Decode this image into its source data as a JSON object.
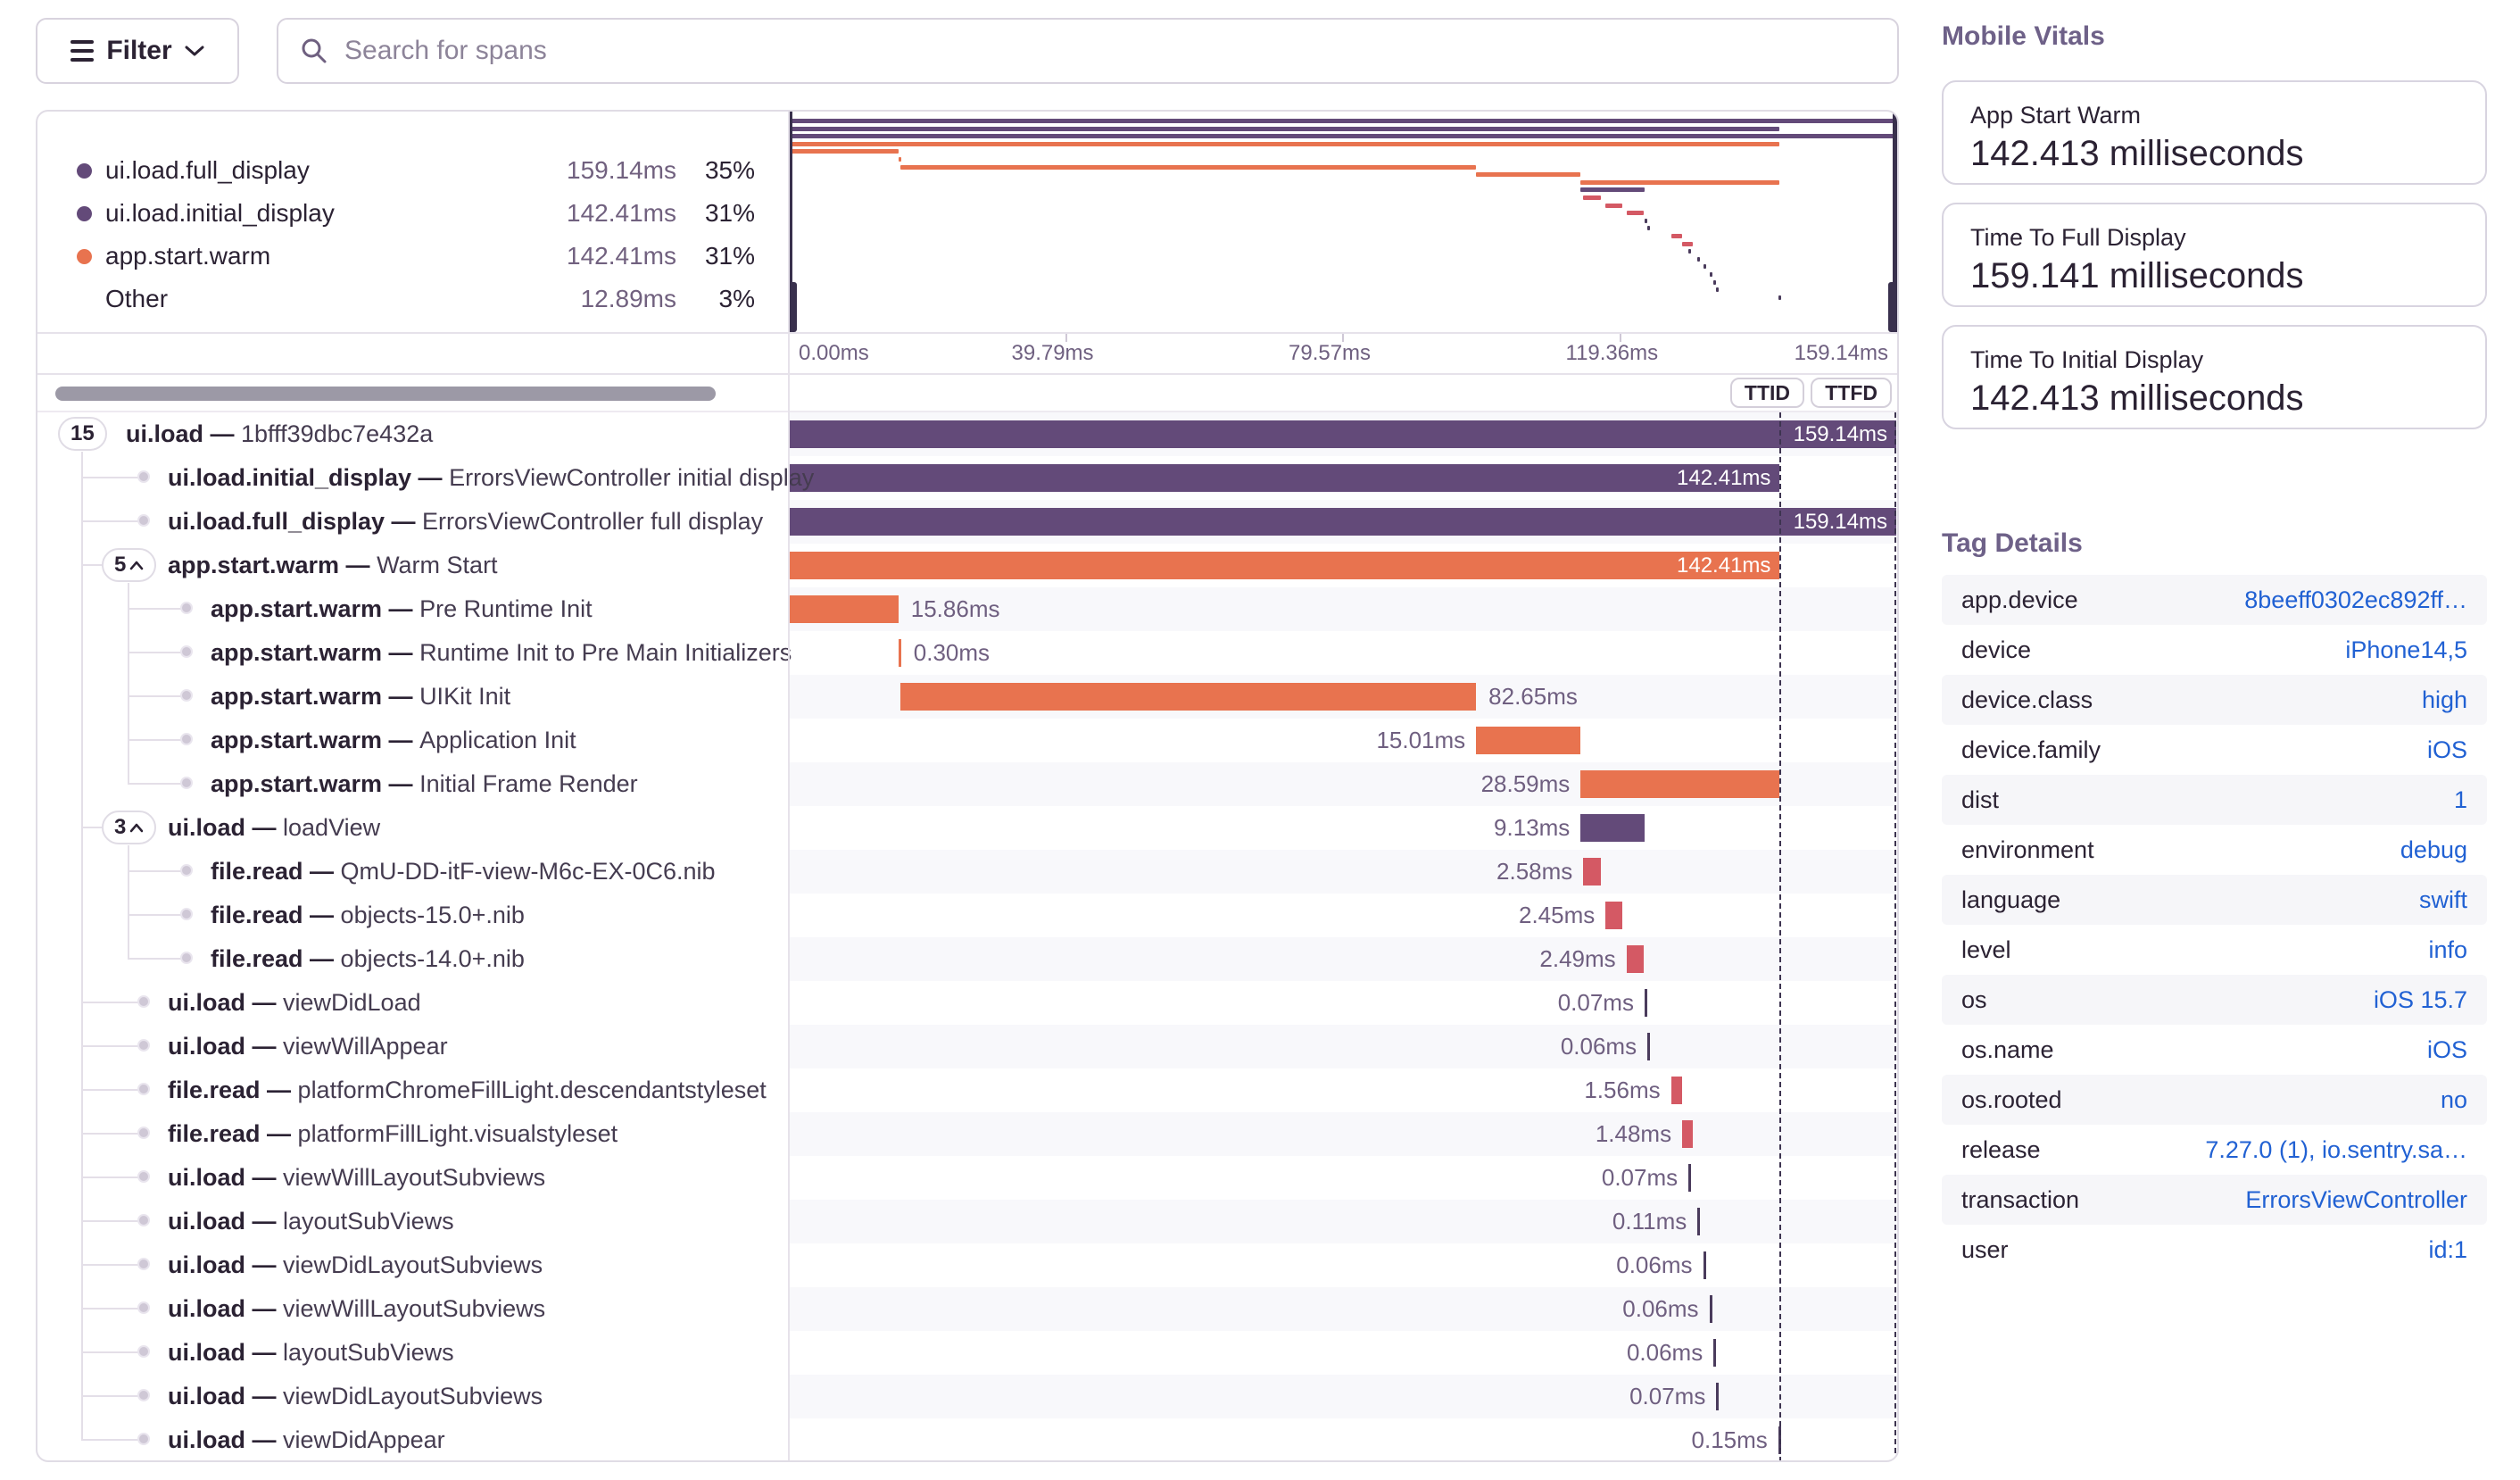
{
  "toolbar": {
    "filter_label": "Filter",
    "search_placeholder": "Search for spans"
  },
  "colors": {
    "purple": "#634a79",
    "orange": "#e8734f",
    "red": "#d45964",
    "tick": "#4a3b5c",
    "link_blue": "#2161d3"
  },
  "legend": {
    "items": [
      {
        "name": "ui.load.full_display",
        "duration": "159.14ms",
        "percent": "35%",
        "color": "#634a79"
      },
      {
        "name": "ui.load.initial_display",
        "duration": "142.41ms",
        "percent": "31%",
        "color": "#634a79"
      },
      {
        "name": "app.start.warm",
        "duration": "142.41ms",
        "percent": "31%",
        "color": "#e8734f"
      },
      {
        "name": "Other",
        "duration": "12.89ms",
        "percent": "3%",
        "color": null
      }
    ]
  },
  "minimap": {
    "total_ms": 159.14,
    "axis_ticks": [
      "0.00ms",
      "39.79ms",
      "79.57ms",
      "119.36ms",
      "159.14ms"
    ],
    "rows": [
      {
        "s": 0,
        "e": 159.14,
        "c": "purple"
      },
      {
        "s": 0,
        "e": 142.41,
        "c": "purple"
      },
      {
        "s": 0,
        "e": 159.14,
        "c": "purple"
      },
      {
        "s": 0,
        "e": 142.41,
        "c": "orange"
      },
      {
        "s": 0,
        "e": 15.86,
        "c": "orange"
      },
      {
        "s": 15.86,
        "e": 16.16,
        "c": "orange"
      },
      {
        "s": 16.16,
        "e": 98.81,
        "c": "orange"
      },
      {
        "s": 98.81,
        "e": 113.82,
        "c": "orange"
      },
      {
        "s": 113.82,
        "e": 142.41,
        "c": "orange"
      },
      {
        "s": 113.82,
        "e": 122.95,
        "c": "purple"
      },
      {
        "s": 114.2,
        "e": 116.78,
        "c": "red"
      },
      {
        "s": 117.4,
        "e": 119.85,
        "c": "red"
      },
      {
        "s": 120.4,
        "e": 122.89,
        "c": "red"
      },
      {
        "s": 123.0,
        "e": 123.25,
        "c": "tick"
      },
      {
        "s": 123.4,
        "e": 123.65,
        "c": "tick"
      },
      {
        "s": 126.8,
        "e": 128.36,
        "c": "red"
      },
      {
        "s": 128.4,
        "e": 129.88,
        "c": "red"
      },
      {
        "s": 129.3,
        "e": 129.55,
        "c": "tick"
      },
      {
        "s": 130.6,
        "e": 130.85,
        "c": "tick"
      },
      {
        "s": 131.4,
        "e": 131.65,
        "c": "tick"
      },
      {
        "s": 132.3,
        "e": 132.55,
        "c": "tick"
      },
      {
        "s": 132.9,
        "e": 133.15,
        "c": "tick"
      },
      {
        "s": 133.3,
        "e": 133.55,
        "c": "tick"
      },
      {
        "s": 142.2,
        "e": 142.45,
        "c": "tick"
      }
    ]
  },
  "markers": {
    "ttid_label": "TTID",
    "ttfd_label": "TTFD",
    "ttid_ms": 142.41,
    "ttfd_ms": 159.14
  },
  "span_separator": "—",
  "spans": [
    {
      "op": "ui.load",
      "desc": "1bfff39dbc7e432a",
      "depth": 0,
      "badge": "15",
      "chevron": false,
      "start": 0,
      "dur": 159.14,
      "label": "159.14ms",
      "pos": "in",
      "color": "purple"
    },
    {
      "op": "ui.load.initial_display",
      "desc": "ErrorsViewController initial display",
      "depth": 1,
      "badge": null,
      "chevron": false,
      "start": 0,
      "dur": 142.41,
      "label": "142.41ms",
      "pos": "in",
      "color": "purple"
    },
    {
      "op": "ui.load.full_display",
      "desc": "ErrorsViewController full display",
      "depth": 1,
      "badge": null,
      "chevron": false,
      "start": 0,
      "dur": 159.14,
      "label": "159.14ms",
      "pos": "in",
      "color": "purple"
    },
    {
      "op": "app.start.warm",
      "desc": "Warm Start",
      "depth": 1,
      "badge": "5",
      "chevron": true,
      "start": 0,
      "dur": 142.41,
      "label": "142.41ms",
      "pos": "in",
      "color": "orange"
    },
    {
      "op": "app.start.warm",
      "desc": "Pre Runtime Init",
      "depth": 2,
      "badge": null,
      "chevron": false,
      "start": 0,
      "dur": 15.86,
      "label": "15.86ms",
      "pos": "after",
      "color": "orange"
    },
    {
      "op": "app.start.warm",
      "desc": "Runtime Init to Pre Main Initializers",
      "depth": 2,
      "badge": null,
      "chevron": false,
      "start": 15.86,
      "dur": 0.3,
      "label": "0.30ms",
      "pos": "after",
      "color": "orange"
    },
    {
      "op": "app.start.warm",
      "desc": "UIKit Init",
      "depth": 2,
      "badge": null,
      "chevron": false,
      "start": 16.16,
      "dur": 82.65,
      "label": "82.65ms",
      "pos": "after",
      "color": "orange"
    },
    {
      "op": "app.start.warm",
      "desc": "Application Init",
      "depth": 2,
      "badge": null,
      "chevron": false,
      "start": 98.81,
      "dur": 15.01,
      "label": "15.01ms",
      "pos": "before",
      "color": "orange"
    },
    {
      "op": "app.start.warm",
      "desc": "Initial Frame Render",
      "depth": 2,
      "badge": null,
      "chevron": false,
      "start": 113.82,
      "dur": 28.59,
      "label": "28.59ms",
      "pos": "before",
      "color": "orange"
    },
    {
      "op": "ui.load",
      "desc": "loadView",
      "depth": 1,
      "badge": "3",
      "chevron": true,
      "start": 113.82,
      "dur": 9.13,
      "label": "9.13ms",
      "pos": "before",
      "color": "purple"
    },
    {
      "op": "file.read",
      "desc": "QmU-DD-itF-view-M6c-EX-0C6.nib",
      "depth": 2,
      "badge": null,
      "chevron": false,
      "start": 114.2,
      "dur": 2.58,
      "label": "2.58ms",
      "pos": "before",
      "color": "red"
    },
    {
      "op": "file.read",
      "desc": "objects-15.0+.nib",
      "depth": 2,
      "badge": null,
      "chevron": false,
      "start": 117.4,
      "dur": 2.45,
      "label": "2.45ms",
      "pos": "before",
      "color": "red"
    },
    {
      "op": "file.read",
      "desc": "objects-14.0+.nib",
      "depth": 2,
      "badge": null,
      "chevron": false,
      "start": 120.4,
      "dur": 2.49,
      "label": "2.49ms",
      "pos": "before",
      "color": "red"
    },
    {
      "op": "ui.load",
      "desc": "viewDidLoad",
      "depth": 1,
      "badge": null,
      "chevron": false,
      "start": 123.0,
      "dur": 0.07,
      "label": "0.07ms",
      "pos": "before",
      "color": "tick"
    },
    {
      "op": "ui.load",
      "desc": "viewWillAppear",
      "depth": 1,
      "badge": null,
      "chevron": false,
      "start": 123.4,
      "dur": 0.06,
      "label": "0.06ms",
      "pos": "before",
      "color": "tick"
    },
    {
      "op": "file.read",
      "desc": "platformChromeFillLight.descendantstyleset",
      "depth": 1,
      "badge": null,
      "chevron": false,
      "start": 126.8,
      "dur": 1.56,
      "label": "1.56ms",
      "pos": "before",
      "color": "red"
    },
    {
      "op": "file.read",
      "desc": "platformFillLight.visualstyleset",
      "depth": 1,
      "badge": null,
      "chevron": false,
      "start": 128.4,
      "dur": 1.48,
      "label": "1.48ms",
      "pos": "before",
      "color": "red"
    },
    {
      "op": "ui.load",
      "desc": "viewWillLayoutSubviews",
      "depth": 1,
      "badge": null,
      "chevron": false,
      "start": 129.3,
      "dur": 0.07,
      "label": "0.07ms",
      "pos": "before",
      "color": "tick"
    },
    {
      "op": "ui.load",
      "desc": "layoutSubViews",
      "depth": 1,
      "badge": null,
      "chevron": false,
      "start": 130.6,
      "dur": 0.11,
      "label": "0.11ms",
      "pos": "before",
      "color": "tick"
    },
    {
      "op": "ui.load",
      "desc": "viewDidLayoutSubviews",
      "depth": 1,
      "badge": null,
      "chevron": false,
      "start": 131.4,
      "dur": 0.06,
      "label": "0.06ms",
      "pos": "before",
      "color": "tick"
    },
    {
      "op": "ui.load",
      "desc": "viewWillLayoutSubviews",
      "depth": 1,
      "badge": null,
      "chevron": false,
      "start": 132.3,
      "dur": 0.06,
      "label": "0.06ms",
      "pos": "before",
      "color": "tick"
    },
    {
      "op": "ui.load",
      "desc": "layoutSubViews",
      "depth": 1,
      "badge": null,
      "chevron": false,
      "start": 132.9,
      "dur": 0.06,
      "label": "0.06ms",
      "pos": "before",
      "color": "tick"
    },
    {
      "op": "ui.load",
      "desc": "viewDidLayoutSubviews",
      "depth": 1,
      "badge": null,
      "chevron": false,
      "start": 133.3,
      "dur": 0.07,
      "label": "0.07ms",
      "pos": "before",
      "color": "tick"
    },
    {
      "op": "ui.load",
      "desc": "viewDidAppear",
      "depth": 1,
      "badge": null,
      "chevron": false,
      "start": 142.2,
      "dur": 0.15,
      "label": "0.15ms",
      "pos": "before",
      "color": "tick"
    }
  ],
  "vitals": {
    "heading": "Mobile Vitals",
    "cards": [
      {
        "title": "App Start Warm",
        "value": "142.413 milliseconds"
      },
      {
        "title": "Time To Full Display",
        "value": "159.141 milliseconds"
      },
      {
        "title": "Time To Initial Display",
        "value": "142.413 milliseconds"
      }
    ]
  },
  "tags": {
    "heading": "Tag Details",
    "rows": [
      {
        "key": "app.device",
        "value": "8beeff0302ec892ff…"
      },
      {
        "key": "device",
        "value": "iPhone14,5"
      },
      {
        "key": "device.class",
        "value": "high"
      },
      {
        "key": "device.family",
        "value": "iOS"
      },
      {
        "key": "dist",
        "value": "1"
      },
      {
        "key": "environment",
        "value": "debug"
      },
      {
        "key": "language",
        "value": "swift"
      },
      {
        "key": "level",
        "value": "info"
      },
      {
        "key": "os",
        "value": "iOS 15.7"
      },
      {
        "key": "os.name",
        "value": "iOS"
      },
      {
        "key": "os.rooted",
        "value": "no"
      },
      {
        "key": "release",
        "value": "7.27.0 (1), io.sentry.sa…"
      },
      {
        "key": "transaction",
        "value": "ErrorsViewController"
      },
      {
        "key": "user",
        "value": "id:1"
      }
    ]
  }
}
